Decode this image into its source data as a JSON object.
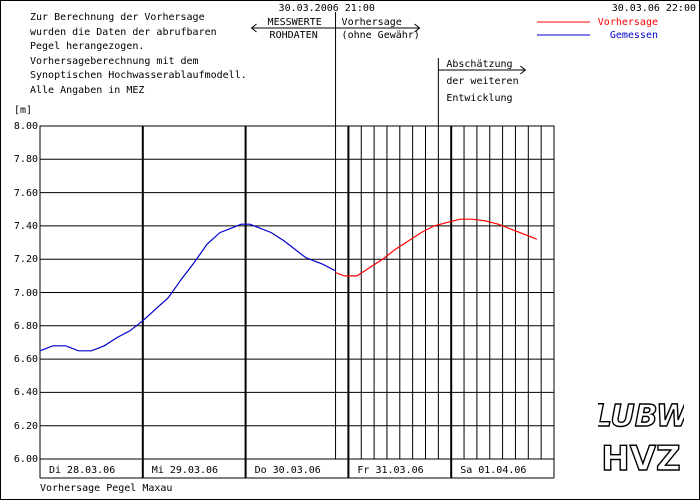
{
  "header": {
    "note_lines": [
      "Zur Berechnung der Vorhersage",
      "wurden die Daten der abrufbaren",
      "Pegel herangezogen.",
      "Vorhersageberechnung mit dem",
      "Synoptischen Hochwasserablaufmodell.",
      "Alle Angaben in MEZ"
    ],
    "forecast_time": "30.03.2006 21:00",
    "created_time": "30.03.06 22:00",
    "measured_label_1": "MESSWERTE",
    "measured_label_2": "ROHDATEN",
    "forecast_label_1": "Vorhersage",
    "forecast_label_2": "(ohne Gewähr)",
    "estimate_lines": [
      "Abschätzung",
      "der weiteren",
      "Entwicklung"
    ]
  },
  "footer": {
    "caption": "Vorhersage Pegel Maxau"
  },
  "logos": {
    "top": "LUBW",
    "bottom": "HVZ"
  },
  "colors": {
    "forecast": "#ff0000",
    "measured": "#0000cc",
    "grid": "#000000"
  },
  "chart_data": {
    "type": "line",
    "ylabel": "[m]",
    "ylim": [
      6.0,
      8.0
    ],
    "yticks": [
      "8.00",
      "7.80",
      "7.60",
      "7.40",
      "7.20",
      "7.00",
      "6.80",
      "6.60",
      "6.40",
      "6.20",
      "6.00"
    ],
    "x_range_hours": [
      0,
      120
    ],
    "day_labels": [
      {
        "label": "Di 28.03.06",
        "hour": 0
      },
      {
        "label": "Mi 29.03.06",
        "hour": 24
      },
      {
        "label": "Do 30.03.06",
        "hour": 48
      },
      {
        "label": "Fr 31.03.06",
        "hour": 72
      },
      {
        "label": "Sa 01.04.06",
        "hour": 96
      }
    ],
    "forecast_start_hour": 69,
    "estimate_start_hour": 93,
    "legend": [
      {
        "name": "Vorhersage",
        "color": "#ff0000"
      },
      {
        "name": "Gemessen",
        "color": "#0000cc"
      }
    ],
    "series": [
      {
        "name": "Gemessen",
        "color": "#0000cc",
        "points": [
          [
            0,
            6.65
          ],
          [
            3,
            6.68
          ],
          [
            6,
            6.68
          ],
          [
            9,
            6.65
          ],
          [
            12,
            6.65
          ],
          [
            15,
            6.68
          ],
          [
            18,
            6.73
          ],
          [
            21,
            6.77
          ],
          [
            24,
            6.83
          ],
          [
            27,
            6.9
          ],
          [
            30,
            6.97
          ],
          [
            33,
            7.08
          ],
          [
            36,
            7.18
          ],
          [
            39,
            7.29
          ],
          [
            42,
            7.36
          ],
          [
            45,
            7.39
          ],
          [
            47,
            7.41
          ],
          [
            49,
            7.41
          ],
          [
            51,
            7.39
          ],
          [
            54,
            7.36
          ],
          [
            57,
            7.31
          ],
          [
            60,
            7.25
          ],
          [
            62,
            7.21
          ],
          [
            64,
            7.19
          ],
          [
            66,
            7.17
          ],
          [
            69,
            7.13
          ]
        ]
      },
      {
        "name": "Vorhersage",
        "color": "#ff0000",
        "points": [
          [
            69,
            7.12
          ],
          [
            71,
            7.1
          ],
          [
            74,
            7.1
          ],
          [
            77,
            7.15
          ],
          [
            80,
            7.2
          ],
          [
            83,
            7.26
          ],
          [
            86,
            7.31
          ],
          [
            89,
            7.36
          ],
          [
            92,
            7.4
          ],
          [
            95,
            7.42
          ],
          [
            98,
            7.44
          ],
          [
            101,
            7.44
          ],
          [
            104,
            7.43
          ],
          [
            107,
            7.41
          ],
          [
            110,
            7.38
          ],
          [
            113,
            7.35
          ],
          [
            116,
            7.32
          ]
        ]
      }
    ]
  }
}
